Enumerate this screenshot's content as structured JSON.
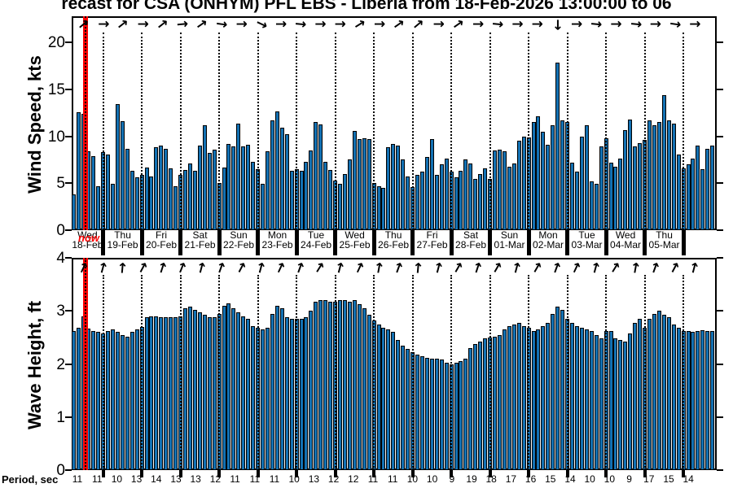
{
  "title": "recast for CSA (ONHYM) PFL EBS  - Liberia from 18-Feb-2026 13:00:00 to 06",
  "now_label": "now",
  "colors": {
    "bar_fill": "#1371b3",
    "bar_edge": "#000000",
    "now_line": "#ff0000",
    "axis": "#000000",
    "background": "#ffffff"
  },
  "day_labels": [
    {
      "dow": "Wed",
      "date": "18-Feb"
    },
    {
      "dow": "Thu",
      "date": "19-Feb"
    },
    {
      "dow": "Fri",
      "date": "20-Feb"
    },
    {
      "dow": "Sat",
      "date": "21-Feb"
    },
    {
      "dow": "Sun",
      "date": "22-Feb"
    },
    {
      "dow": "Mon",
      "date": "23-Feb"
    },
    {
      "dow": "Tue",
      "date": "24-Feb"
    },
    {
      "dow": "Wed",
      "date": "25-Feb"
    },
    {
      "dow": "Thu",
      "date": "26-Feb"
    },
    {
      "dow": "Fri",
      "date": "27-Feb"
    },
    {
      "dow": "Sat",
      "date": "28-Feb"
    },
    {
      "dow": "Sun",
      "date": "01-Mar"
    },
    {
      "dow": "Mon",
      "date": "02-Mar"
    },
    {
      "dow": "Tue",
      "date": "03-Mar"
    },
    {
      "dow": "Wed",
      "date": "04-Mar"
    },
    {
      "dow": "Thu",
      "date": "05-Mar"
    }
  ],
  "period_row": {
    "label": "Period, sec",
    "values": [
      11,
      11,
      10,
      13,
      14,
      13,
      13,
      12,
      11,
      11,
      11,
      10,
      13,
      12,
      12,
      11,
      11,
      10,
      10,
      9,
      19,
      18,
      17,
      16,
      15,
      14,
      10,
      10,
      9,
      17,
      15,
      14
    ]
  },
  "chart_data": [
    {
      "type": "bar",
      "name": "wind_speed",
      "ylabel": "Wind Speed, kts",
      "yticks": [
        0,
        5,
        10,
        15,
        20
      ],
      "ylim": [
        0,
        22.8
      ],
      "x_start": "18-Feb-2026 07:00",
      "x_step_hours": 3,
      "grid": "vertical dotted at midnights",
      "values": [
        3.8,
        12.6,
        12.4,
        8.4,
        7.9,
        4.7,
        8.3,
        8.1,
        4.9,
        13.4,
        11.6,
        8.7,
        6.3,
        5.6,
        5.9,
        6.7,
        5.7,
        8.8,
        9.0,
        8.7,
        6.6,
        4.7,
        5.9,
        6.4,
        7.1,
        6.3,
        9.0,
        11.2,
        8.2,
        8.6,
        5.0,
        6.7,
        9.2,
        8.9,
        11.4,
        8.9,
        9.1,
        7.3,
        6.5,
        4.9,
        8.4,
        11.7,
        12.7,
        10.9,
        10.2,
        6.3,
        6.5,
        6.3,
        7.3,
        8.5,
        11.5,
        11.3,
        7.3,
        6.4,
        5.3,
        4.9,
        6.0,
        7.5,
        10.6,
        9.7,
        9.8,
        9.7,
        5.0,
        4.7,
        4.5,
        8.8,
        9.2,
        9.0,
        7.5,
        5.7,
        4.6,
        5.9,
        6.2,
        7.8,
        9.7,
        5.9,
        7.0,
        7.6,
        6.2,
        5.6,
        6.3,
        7.5,
        7.1,
        5.5,
        6.0,
        6.6,
        5.5,
        8.5,
        8.6,
        8.4,
        6.8,
        7.1,
        9.5,
        10.0,
        9.9,
        11.5,
        12.1,
        10.5,
        9.1,
        11.2,
        17.9,
        11.7,
        11.5,
        7.2,
        6.2,
        10.0,
        11.2,
        5.2,
        4.9,
        8.9,
        9.8,
        7.2,
        6.8,
        7.6,
        10.7,
        11.8,
        8.9,
        9.3,
        9.6,
        11.7,
        11.2,
        11.5,
        14.4,
        11.7,
        11.4,
        8.1,
        6.6,
        7.0,
        7.6,
        9.0,
        6.5,
        8.7,
        9.0
      ],
      "arrows_meaning": "wind direction (deg clockwise, 0 = pointing right/east)",
      "arrows_deg": [
        -40,
        0,
        -38,
        0,
        -38,
        -5,
        -35,
        8,
        0,
        25,
        0,
        5,
        0,
        0,
        -32,
        0,
        -35,
        -40,
        0,
        -35,
        0,
        5,
        0,
        0,
        90,
        0,
        5,
        0,
        5,
        0,
        8,
        0
      ]
    },
    {
      "type": "bar",
      "name": "wave_height",
      "ylabel": "Wave Height, ft",
      "yticks": [
        0,
        1,
        2,
        3,
        4
      ],
      "ylim": [
        0,
        4
      ],
      "x_start": "18-Feb-2026 07:00",
      "x_step_hours": 3,
      "grid": "vertical dotted at midnights",
      "values": [
        2.62,
        2.68,
        2.9,
        2.66,
        2.62,
        2.6,
        2.58,
        2.62,
        2.65,
        2.6,
        2.55,
        2.52,
        2.6,
        2.65,
        2.7,
        2.88,
        2.9,
        2.9,
        2.88,
        2.88,
        2.88,
        2.88,
        2.9,
        3.05,
        3.08,
        3.02,
        2.98,
        2.92,
        2.88,
        2.88,
        2.95,
        3.1,
        3.14,
        3.05,
        2.98,
        2.9,
        2.85,
        2.72,
        2.68,
        2.65,
        2.68,
        2.95,
        3.1,
        3.05,
        2.88,
        2.85,
        2.85,
        2.85,
        2.88,
        3.0,
        3.18,
        3.2,
        3.2,
        3.18,
        3.18,
        3.2,
        3.2,
        3.18,
        3.2,
        3.12,
        3.05,
        2.92,
        2.82,
        2.75,
        2.68,
        2.65,
        2.6,
        2.45,
        2.35,
        2.28,
        2.22,
        2.18,
        2.15,
        2.12,
        2.1,
        2.1,
        2.08,
        2.02,
        2.0,
        2.02,
        2.05,
        2.1,
        2.3,
        2.38,
        2.42,
        2.48,
        2.5,
        2.52,
        2.55,
        2.65,
        2.72,
        2.75,
        2.78,
        2.72,
        2.68,
        2.62,
        2.65,
        2.72,
        2.78,
        2.95,
        3.08,
        3.02,
        2.85,
        2.78,
        2.72,
        2.68,
        2.65,
        2.62,
        2.55,
        2.48,
        2.62,
        2.62,
        2.48,
        2.45,
        2.42,
        2.58,
        2.78,
        2.85,
        2.68,
        2.85,
        2.95,
        3.0,
        2.92,
        2.88,
        2.75,
        2.68,
        2.62,
        2.62,
        2.6,
        2.62,
        2.64,
        2.62,
        2.62
      ],
      "arrows_meaning": "wave direction (deg clockwise, 0 = pointing right/east)",
      "arrows_deg": [
        -65,
        -75,
        -85,
        -62,
        -72,
        -68,
        -75,
        -70,
        -62,
        -75,
        -65,
        -70,
        -58,
        -75,
        -65,
        -80,
        -70,
        -85,
        -75,
        -60,
        -72,
        -60,
        -75,
        -60,
        -70,
        -65,
        -75,
        -58,
        -80,
        -70,
        -62,
        -75
      ]
    }
  ]
}
